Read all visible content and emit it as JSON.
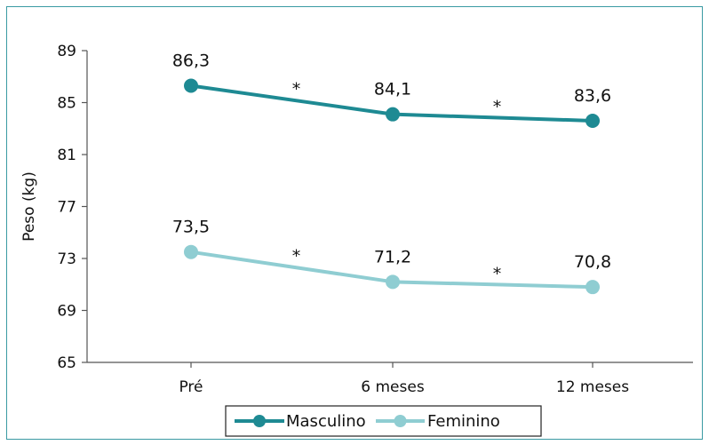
{
  "chart_data": {
    "type": "line",
    "categories": [
      "Pré",
      "6 meses",
      "12 meses"
    ],
    "ylabel": "Peso (kg)",
    "xlabel": "",
    "ylim": [
      65,
      89
    ],
    "yticks": [
      65,
      69,
      73,
      77,
      81,
      85,
      89
    ],
    "series": [
      {
        "name": "Masculino",
        "color": "#1e8a93",
        "values": [
          86.3,
          84.1,
          83.6
        ],
        "labels": [
          "86,3",
          "84,1",
          "83,6"
        ]
      },
      {
        "name": "Feminino",
        "color": "#8fcdd2",
        "values": [
          73.5,
          71.2,
          70.8
        ],
        "labels": [
          "73,5",
          "71,2",
          "70,8"
        ]
      }
    ],
    "annotations": [
      "*",
      "*",
      "*",
      "*"
    ],
    "legend_position": "bottom",
    "grid": false
  }
}
